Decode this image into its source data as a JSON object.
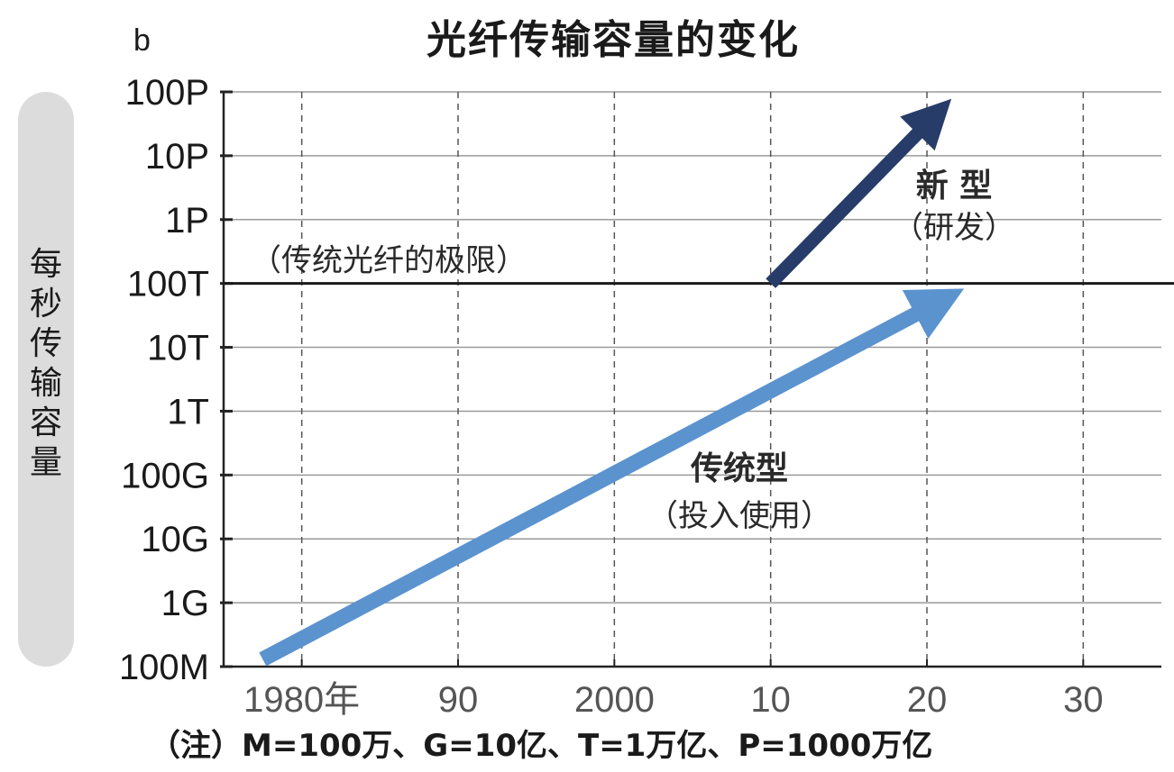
{
  "chart_data": {
    "type": "line",
    "title": "光纤传输容量的变化",
    "unit_label": "b",
    "ylabel": "每秒传输容量",
    "yscale": "log",
    "y_ticks": [
      {
        "label": "100M",
        "value": 100000000.0
      },
      {
        "label": "1G",
        "value": 1000000000.0
      },
      {
        "label": "10G",
        "value": 10000000000.0
      },
      {
        "label": "100G",
        "value": 100000000000.0
      },
      {
        "label": "1T",
        "value": 1000000000000.0
      },
      {
        "label": "10T",
        "value": 10000000000000.0
      },
      {
        "label": "100T",
        "value": 100000000000000.0
      },
      {
        "label": "1P",
        "value": 1000000000000000.0
      },
      {
        "label": "10P",
        "value": 1e+16
      },
      {
        "label": "100P",
        "value": 1e+17
      }
    ],
    "x_ticks": [
      {
        "label": "1980年",
        "value": 1980
      },
      {
        "label": "90",
        "value": 1990
      },
      {
        "label": "2000",
        "value": 2000
      },
      {
        "label": "10",
        "value": 2010
      },
      {
        "label": "20",
        "value": 2020
      },
      {
        "label": "30",
        "value": 2030
      }
    ],
    "xlim": [
      1975,
      2035
    ],
    "ylim": [
      100000000.0,
      1e+17
    ],
    "grid": true,
    "limit_line": {
      "value": 100000000000000.0,
      "label": "（传统光纤的极限）"
    },
    "series": [
      {
        "name": "传统型",
        "sublabel": "（投入使用）",
        "color": "#5b93cf",
        "points": [
          {
            "x": 1977.5,
            "y": 130000000.0
          },
          {
            "x": 2023.0,
            "y": 100000000000000.0
          }
        ]
      },
      {
        "name": "新 型",
        "sublabel": "（研发）",
        "color": "#283c69",
        "points": [
          {
            "x": 2010.0,
            "y": 100000000000000.0
          },
          {
            "x": 2022.0,
            "y": 1e+17
          }
        ]
      }
    ]
  },
  "note": "（注）M=100万、G=10亿、T=1万亿、P=1000万亿"
}
